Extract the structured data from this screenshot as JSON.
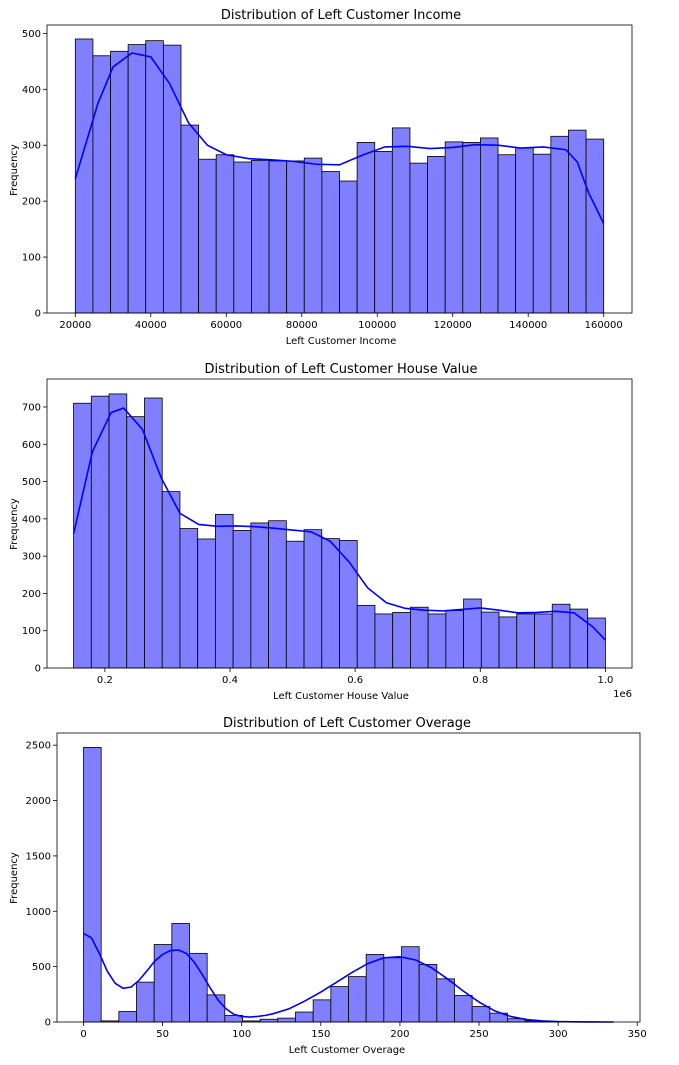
{
  "chart_data": [
    {
      "type": "histogram",
      "title": "Distribution of Left Customer Income",
      "xlabel": "Left Customer Income",
      "ylabel": "Frequency",
      "xlim": [
        12500,
        167500
      ],
      "ylim": [
        0,
        515
      ],
      "xticks": [
        20000,
        40000,
        60000,
        80000,
        100000,
        120000,
        140000,
        160000
      ],
      "xtick_labels": [
        "20000",
        "40000",
        "60000",
        "80000",
        "100000",
        "120000",
        "140000",
        "160000"
      ],
      "yticks": [
        0,
        100,
        200,
        300,
        400,
        500
      ],
      "ytick_labels": [
        "0",
        "100",
        "200",
        "300",
        "400",
        "500"
      ],
      "offset_text": "",
      "bin_start": 20000,
      "bin_end": 160000,
      "counts": [
        490,
        460,
        468,
        480,
        487,
        479,
        336,
        275,
        283,
        270,
        273,
        272,
        272,
        277,
        253,
        236,
        305,
        289,
        331,
        268,
        280,
        306,
        305,
        313,
        283,
        295,
        284,
        316,
        327,
        311
      ],
      "kde": {
        "x": [
          20000,
          26000,
          30000,
          35000,
          40000,
          45000,
          50000,
          55000,
          60000,
          66000,
          72000,
          78000,
          84000,
          90000,
          96000,
          102000,
          108000,
          114000,
          120000,
          126000,
          132000,
          138000,
          144000,
          150000,
          153000,
          156000,
          160000
        ],
        "y": [
          240,
          375,
          440,
          465,
          458,
          410,
          340,
          300,
          283,
          276,
          274,
          271,
          266,
          265,
          282,
          297,
          298,
          294,
          296,
          301,
          300,
          295,
          297,
          292,
          270,
          215,
          160
        ]
      },
      "bar_color": "#7F7FFF",
      "line_color": "#0000FF",
      "grid": false
    },
    {
      "type": "histogram",
      "title": "Distribution of Left Customer House Value",
      "xlabel": "Left Customer House Value",
      "ylabel": "Frequency",
      "xlim": [
        0.1075,
        1.0425
      ],
      "ylim": [
        0,
        775
      ],
      "xticks": [
        0.2,
        0.4,
        0.6,
        0.8,
        1.0
      ],
      "xtick_labels": [
        "0.2",
        "0.4",
        "0.6",
        "0.8",
        "1.0"
      ],
      "yticks": [
        0,
        100,
        200,
        300,
        400,
        500,
        600,
        700
      ],
      "ytick_labels": [
        "0",
        "100",
        "200",
        "300",
        "400",
        "500",
        "600",
        "700"
      ],
      "offset_text": "1e6",
      "bin_start": 0.15,
      "bin_end": 1.0,
      "counts": [
        710,
        729,
        735,
        674,
        724,
        473,
        374,
        346,
        412,
        369,
        389,
        395,
        340,
        371,
        347,
        342,
        168,
        145,
        149,
        163,
        145,
        154,
        185,
        150,
        137,
        145,
        145,
        171,
        158,
        134
      ],
      "kde": {
        "x": [
          0.15,
          0.18,
          0.21,
          0.23,
          0.26,
          0.29,
          0.32,
          0.35,
          0.38,
          0.41,
          0.44,
          0.47,
          0.5,
          0.53,
          0.56,
          0.59,
          0.62,
          0.65,
          0.68,
          0.71,
          0.74,
          0.77,
          0.8,
          0.83,
          0.86,
          0.89,
          0.92,
          0.95,
          0.98,
          1.0
        ],
        "y": [
          360,
          580,
          685,
          697,
          640,
          510,
          415,
          385,
          380,
          381,
          379,
          375,
          370,
          365,
          340,
          285,
          215,
          175,
          160,
          155,
          153,
          157,
          161,
          155,
          148,
          149,
          152,
          148,
          110,
          75
        ]
      },
      "bar_color": "#7F7FFF",
      "line_color": "#0000FF",
      "grid": false
    },
    {
      "type": "histogram",
      "title": "Distribution of Left Customer Overage",
      "xlabel": "Left Customer Overage",
      "ylabel": "Frequency",
      "xlim": [
        -16.75,
        351.75
      ],
      "ylim": [
        0,
        2610
      ],
      "xticks": [
        0,
        50,
        100,
        150,
        200,
        250,
        300,
        350
      ],
      "xtick_labels": [
        "0",
        "50",
        "100",
        "150",
        "200",
        "250",
        "300",
        "350"
      ],
      "yticks": [
        0,
        500,
        1000,
        1500,
        2000,
        2500
      ],
      "ytick_labels": [
        "0",
        "500",
        "1000",
        "1500",
        "2000",
        "2500"
      ],
      "offset_text": "",
      "bin_start": 0,
      "bin_end": 335,
      "counts": [
        2480,
        10,
        95,
        360,
        700,
        890,
        620,
        245,
        60,
        10,
        25,
        35,
        90,
        200,
        320,
        410,
        610,
        580,
        680,
        520,
        390,
        240,
        140,
        80,
        30,
        10,
        5,
        3,
        2,
        1
      ],
      "kde": {
        "x": [
          0,
          5,
          10,
          15,
          20,
          25,
          30,
          35,
          40,
          45,
          50,
          55,
          60,
          65,
          70,
          75,
          80,
          85,
          90,
          95,
          100,
          105,
          110,
          115,
          120,
          130,
          140,
          150,
          160,
          170,
          180,
          190,
          200,
          210,
          220,
          230,
          240,
          250,
          260,
          270,
          280,
          290,
          300,
          310,
          320,
          335
        ],
        "y": [
          800,
          760,
          620,
          460,
          350,
          305,
          315,
          375,
          460,
          550,
          610,
          645,
          650,
          620,
          540,
          430,
          310,
          200,
          120,
          70,
          50,
          45,
          50,
          60,
          75,
          120,
          190,
          270,
          360,
          450,
          530,
          580,
          590,
          560,
          490,
          390,
          280,
          180,
          100,
          50,
          22,
          10,
          4,
          2,
          1,
          0
        ]
      },
      "bar_color": "#7F7FFF",
      "line_color": "#0000FF",
      "grid": false
    }
  ]
}
